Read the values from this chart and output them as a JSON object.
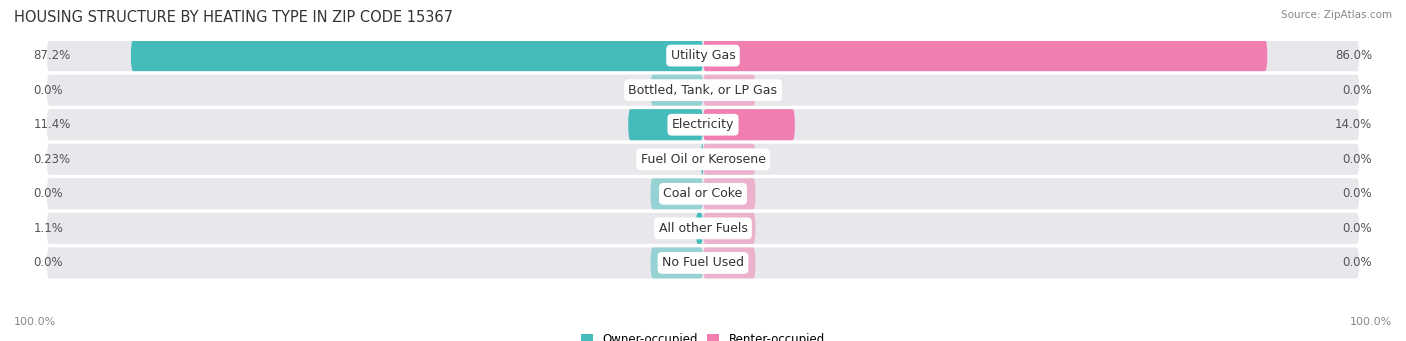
{
  "title": "HOUSING STRUCTURE BY HEATING TYPE IN ZIP CODE 15367",
  "source": "Source: ZipAtlas.com",
  "categories": [
    "Utility Gas",
    "Bottled, Tank, or LP Gas",
    "Electricity",
    "Fuel Oil or Kerosene",
    "Coal or Coke",
    "All other Fuels",
    "No Fuel Used"
  ],
  "owner_values": [
    87.2,
    0.0,
    11.4,
    0.23,
    0.0,
    1.1,
    0.0
  ],
  "renter_values": [
    86.0,
    0.0,
    14.0,
    0.0,
    0.0,
    0.0,
    0.0
  ],
  "owner_labels": [
    "87.2%",
    "0.0%",
    "11.4%",
    "0.23%",
    "0.0%",
    "1.1%",
    "0.0%"
  ],
  "renter_labels": [
    "86.0%",
    "0.0%",
    "14.0%",
    "0.0%",
    "0.0%",
    "0.0%",
    "0.0%"
  ],
  "owner_color": "#45BCBB",
  "renter_color": "#F07EB0",
  "row_bg_color": "#e8e8ec",
  "title_fontsize": 10.5,
  "label_fontsize": 8.5,
  "cat_fontsize": 9,
  "axis_label_fontsize": 8,
  "max_value": 100,
  "x_axis_left": "100.0%",
  "x_axis_right": "100.0%"
}
